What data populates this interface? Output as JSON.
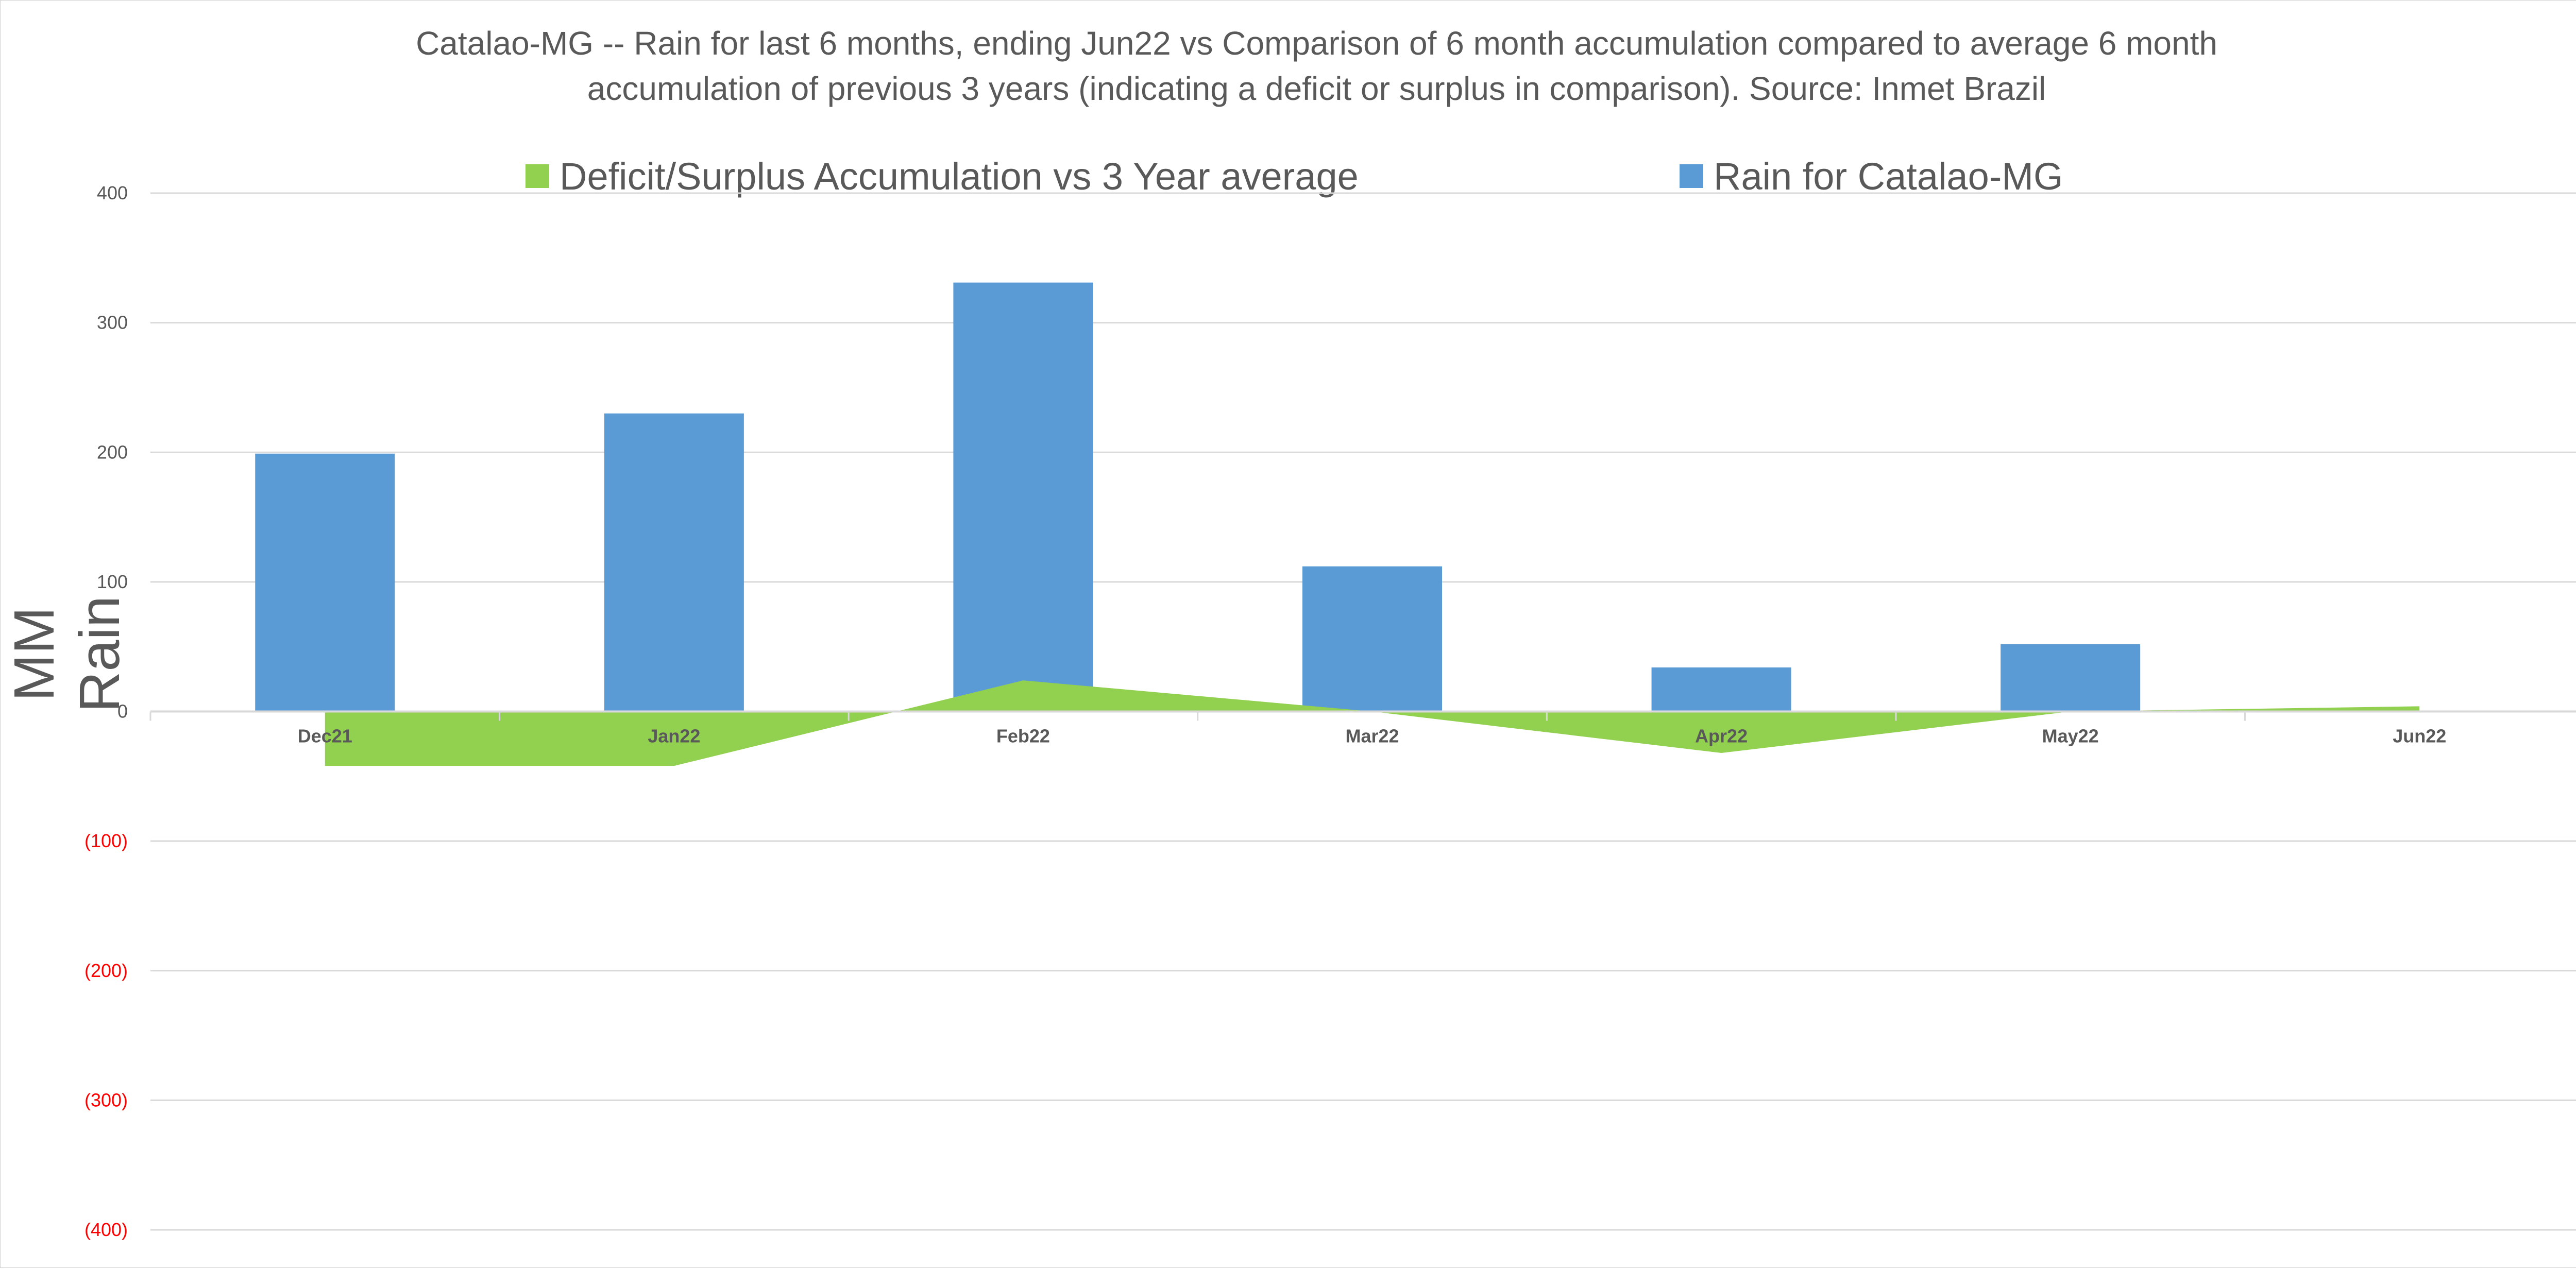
{
  "chart_data": {
    "type": "bar",
    "title": "Catalao-MG -- Rain for last 6 months, ending Jun22  vs Comparison of 6 month accumulation compared to average 6 month accumulation of previous 3 years  (indicating a deficit or surplus in comparison). Source: Inmet Brazil",
    "title_lines": [
      "Catalao-MG -- Rain for last 6 months, ending Jun22  vs Comparison of 6 month accumulation compared to average 6 month",
      "accumulation of previous 3 years  (indicating a deficit or surplus in comparison). Source: Inmet Brazil"
    ],
    "xlabel": "",
    "ylabel": "MM Rain",
    "ylim": [
      -400,
      400
    ],
    "yticks": [
      400,
      300,
      200,
      100,
      0,
      -100,
      -200,
      -300,
      -400
    ],
    "ytick_labels": [
      "400",
      "300",
      "200",
      "100",
      "0",
      "(100)",
      "(200)",
      "(300)",
      "(400)"
    ],
    "categories": [
      "Dec21",
      "Jan22",
      "Feb22",
      "Mar22",
      "Apr22",
      "May22",
      "Jun22"
    ],
    "grid": true,
    "legend_position": "top",
    "series": [
      {
        "name": "Deficit/Surplus Accumulation vs 3 Year average",
        "type": "area",
        "color": "#92d050",
        "values": [
          -42,
          -42,
          24,
          0,
          -32,
          0,
          4
        ]
      },
      {
        "name": "Rain for Catalao-MG",
        "type": "bar",
        "color": "#5b9bd5",
        "values": [
          199,
          230,
          331,
          112,
          34,
          52,
          0
        ]
      }
    ],
    "colors": {
      "axis_text": "#595959",
      "negative_tick": "#ff0000",
      "grid": "#d9d9d9"
    }
  }
}
